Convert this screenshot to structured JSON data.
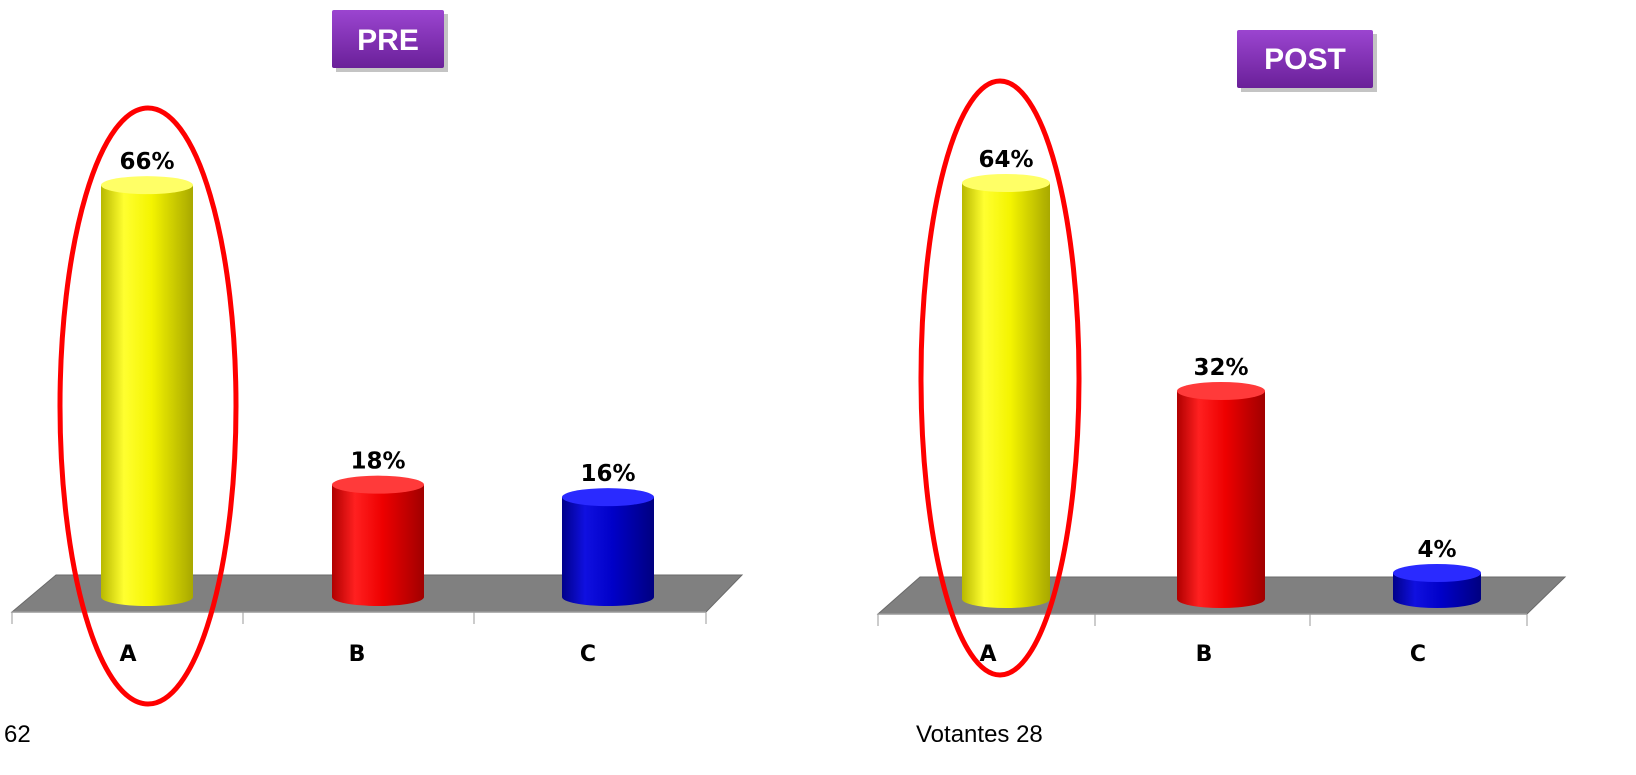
{
  "colors": {
    "title_bg": "#7b2fb0",
    "floor": "#808080",
    "highlight": "#ff0000",
    "bar_A": "#ffff00",
    "bar_B": "#ff0000",
    "bar_C": "#0000cc"
  },
  "chart_data": [
    {
      "type": "bar",
      "title": "PRE",
      "categories": [
        "A",
        "B",
        "C"
      ],
      "values": [
        66,
        18,
        16
      ],
      "value_labels": [
        "66%",
        "18%",
        "16%"
      ],
      "unit": "%",
      "ylim": [
        0,
        70
      ],
      "highlighted_category": "A",
      "footer": "62"
    },
    {
      "type": "bar",
      "title": "POST",
      "categories": [
        "A",
        "B",
        "C"
      ],
      "values": [
        64,
        32,
        4
      ],
      "value_labels": [
        "64%",
        "32%",
        "4%"
      ],
      "unit": "%",
      "ylim": [
        0,
        70
      ],
      "highlighted_category": "A",
      "footer": "Votantes  28"
    }
  ]
}
